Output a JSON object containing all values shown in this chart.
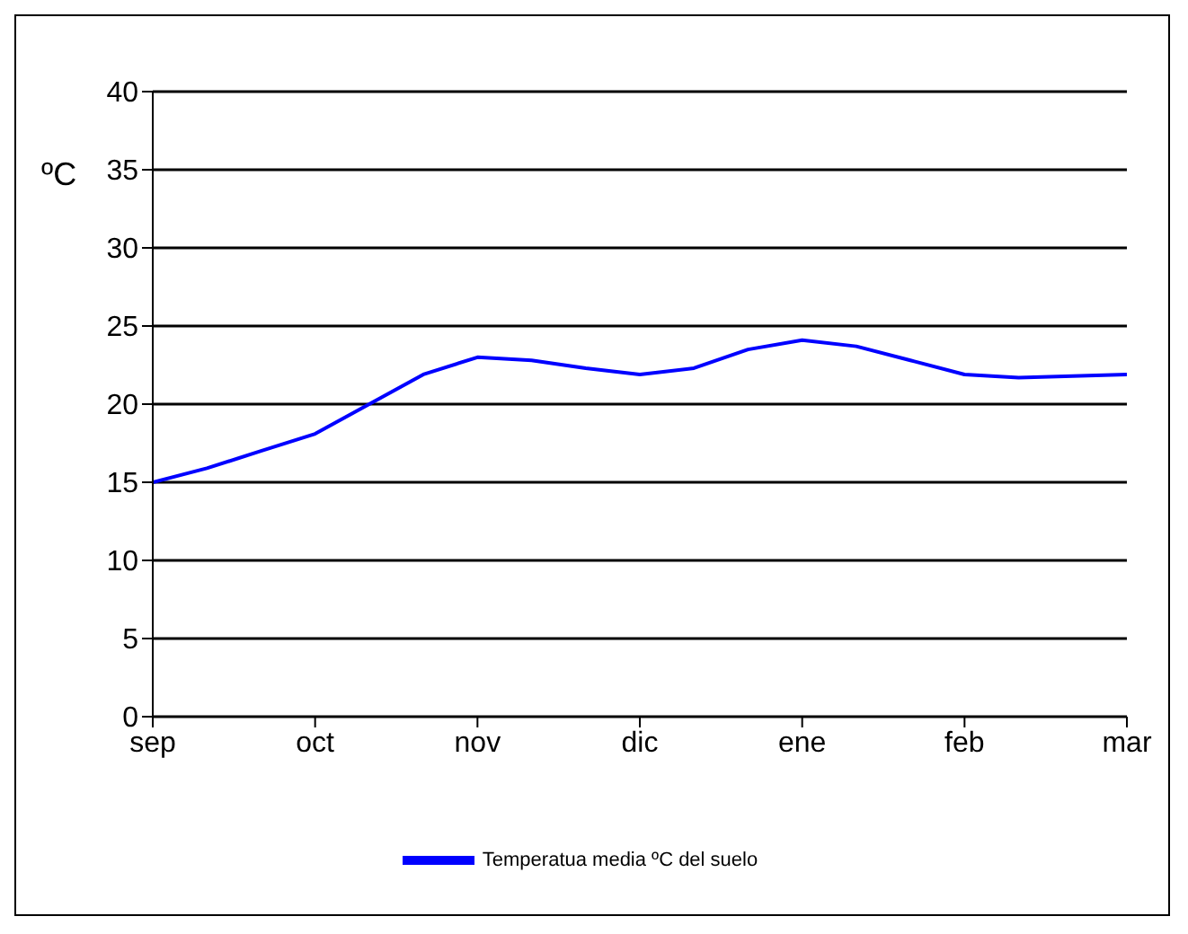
{
  "chart_data": {
    "type": "line",
    "ylabel": "ºC",
    "categories": [
      "sep",
      null,
      null,
      "oct",
      null,
      null,
      "nov",
      null,
      null,
      "dic",
      null,
      null,
      "ene",
      null,
      null,
      "feb",
      null,
      null,
      "mar"
    ],
    "series": [
      {
        "name": "Temperatua media ºC del suelo",
        "color": "#0000ff",
        "values": [
          15,
          15.9,
          17,
          18.1,
          20,
          21.9,
          23,
          22.8,
          22.3,
          21.9,
          22.3,
          23.5,
          24.1,
          23.7,
          22.8,
          21.9,
          21.7,
          21.8,
          21.9
        ]
      }
    ],
    "ylim": [
      0,
      40
    ],
    "yticks": [
      0,
      5,
      10,
      15,
      20,
      25,
      30,
      35,
      40
    ],
    "grid": "y",
    "legend": "bottom",
    "marker": "none",
    "line_style": "solid"
  }
}
